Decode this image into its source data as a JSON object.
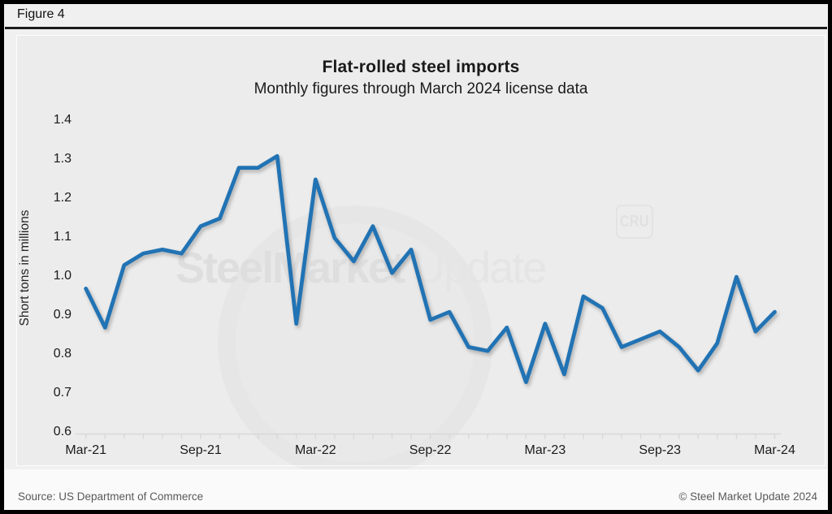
{
  "figure_label": "Figure 4",
  "chart_data": {
    "type": "line",
    "title": "Flat-rolled steel imports",
    "subtitle": "Monthly figures through March 2024 license data",
    "ylabel": "Short tons in millions",
    "ylim": [
      0.6,
      1.4
    ],
    "ytick_step": 0.1,
    "yticks": [
      0.6,
      0.7,
      0.8,
      0.9,
      1.0,
      1.1,
      1.2,
      1.3,
      1.4
    ],
    "x_tick_labels": [
      "Mar-21",
      "Sep-21",
      "Mar-22",
      "Sep-22",
      "Mar-23",
      "Sep-23",
      "Mar-24"
    ],
    "x": [
      "Mar-21",
      "Apr-21",
      "May-21",
      "Jun-21",
      "Jul-21",
      "Aug-21",
      "Sep-21",
      "Oct-21",
      "Nov-21",
      "Dec-21",
      "Jan-22",
      "Feb-22",
      "Mar-22",
      "Apr-22",
      "May-22",
      "Jun-22",
      "Jul-22",
      "Aug-22",
      "Sep-22",
      "Oct-22",
      "Nov-22",
      "Dec-22",
      "Jan-23",
      "Feb-23",
      "Mar-23",
      "Apr-23",
      "May-23",
      "Jun-23",
      "Jul-23",
      "Aug-23",
      "Sep-23",
      "Oct-23",
      "Nov-23",
      "Dec-23",
      "Jan-24",
      "Feb-24",
      "Mar-24"
    ],
    "series": [
      {
        "name": "Flat-rolled steel imports (short tons, millions)",
        "values": [
          0.97,
          0.87,
          1.03,
          1.06,
          1.07,
          1.06,
          1.13,
          1.15,
          1.28,
          1.28,
          1.31,
          0.88,
          1.25,
          1.1,
          1.04,
          1.13,
          1.01,
          1.07,
          0.89,
          0.91,
          0.82,
          0.81,
          0.87,
          0.73,
          0.88,
          0.75,
          0.95,
          0.92,
          0.82,
          0.84,
          0.86,
          0.82,
          0.76,
          0.83,
          1.0,
          0.86,
          0.91
        ]
      }
    ],
    "line_color": "#2173b4",
    "axis_color": "#d8d8d8",
    "grid": false,
    "legend": "none"
  },
  "watermark": {
    "brand_bold": "SteelMarket",
    "brand_light": "Update",
    "cru": "CRU"
  },
  "footer": {
    "source": "Source: US Department of Commerce",
    "copyright": "© Steel Market Update 2024"
  }
}
